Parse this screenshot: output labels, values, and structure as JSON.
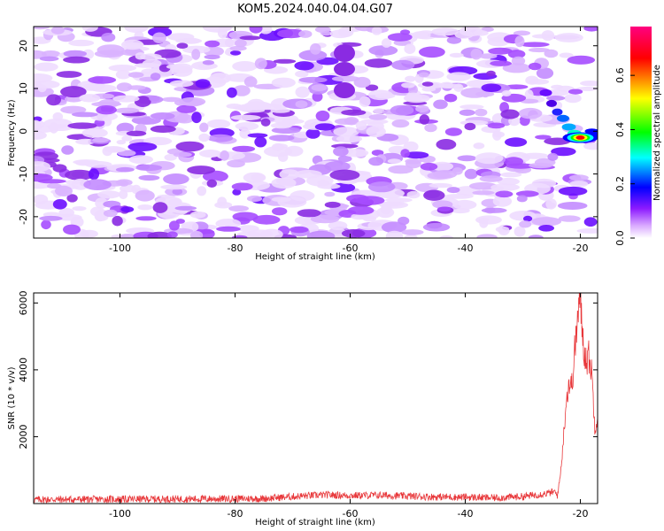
{
  "chart_data": [
    {
      "type": "heatmap",
      "title": "KOM5.2024.040.04.04.G07",
      "xlabel": "Height of straight line (km)",
      "ylabel": "Frequency (Hz)",
      "xlim": [
        -115,
        -17
      ],
      "ylim": [
        -25,
        24.5
      ],
      "x_ticks": [
        -100,
        -80,
        -60,
        -40,
        -20
      ],
      "y_ticks": [
        -20,
        -10,
        0,
        10,
        20
      ],
      "colorbar": {
        "label": "Normalized spectral amplitude",
        "range": [
          0,
          0.78
        ],
        "ticks": [
          0.0,
          0.2,
          0.4,
          0.6
        ],
        "colors": [
          "#ffffff",
          "#cc66ff",
          "#6600ff",
          "#0000ff",
          "#00ffff",
          "#00ff00",
          "#ffff00",
          "#ff0000",
          "#ff0080"
        ]
      },
      "peak": {
        "x": -20,
        "y": -1.5,
        "value": 0.78
      }
    },
    {
      "type": "line",
      "xlabel": "Height of straight line (km)",
      "ylabel": "SNR (10 * v/v)",
      "xlim": [
        -115,
        -17
      ],
      "ylim": [
        0,
        6300
      ],
      "x_ticks": [
        -100,
        -80,
        -60,
        -40,
        -20
      ],
      "y_ticks": [
        2000,
        4000,
        6000
      ],
      "color": "#e8383b",
      "series": [
        {
          "x": [
            -115,
            -100,
            -85,
            -75,
            -68,
            -64,
            -60,
            -55,
            -50,
            -45,
            -40,
            -35,
            -30,
            -26,
            -24.5,
            -24,
            -23.5,
            -23,
            -22.5,
            -22,
            -21.5,
            -21,
            -20.5,
            -20,
            -19.5,
            -19,
            -18.5,
            -18,
            -17.5,
            -17
          ],
          "y": [
            120,
            130,
            140,
            150,
            230,
            260,
            240,
            250,
            220,
            200,
            190,
            170,
            210,
            300,
            350,
            250,
            800,
            1800,
            3000,
            3600,
            3500,
            4500,
            5500,
            6200,
            4800,
            4300,
            4400,
            3900,
            2300,
            2600
          ]
        }
      ]
    }
  ]
}
